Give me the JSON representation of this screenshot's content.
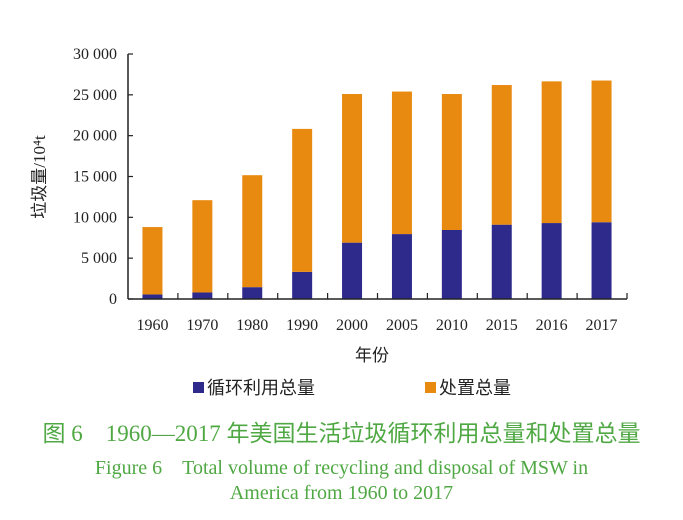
{
  "chart_data": {
    "type": "bar",
    "stacked": true,
    "categories": [
      "1960",
      "1970",
      "1980",
      "1990",
      "2000",
      "2005",
      "2010",
      "2015",
      "2016",
      "2017"
    ],
    "series": [
      {
        "name": "循环利用总量",
        "color": "#2e2a8c",
        "values": [
          560,
          800,
          1450,
          3320,
          6900,
          7950,
          8450,
          9100,
          9300,
          9400
        ]
      },
      {
        "name": "处置总量",
        "color": "#e88a10",
        "values": [
          8250,
          11300,
          13710,
          17510,
          18200,
          17450,
          16650,
          17100,
          17350,
          17350
        ]
      }
    ],
    "xlabel": "年份",
    "ylabel": "垃圾量/10⁴t",
    "ylim": [
      0,
      30000
    ],
    "yticks": [
      "0",
      "5 000",
      "10 000",
      "15 000",
      "20 000",
      "25 000",
      "30 000"
    ],
    "grid": false,
    "legend_position": "bottom"
  },
  "caption": {
    "zh": "图 6　1960—2017 年美国生活垃圾循环利用总量和处置总量",
    "en_line1": "Figure 6　Total volume of recycling and disposal of MSW in",
    "en_line2": "America from 1960 to 2017"
  }
}
